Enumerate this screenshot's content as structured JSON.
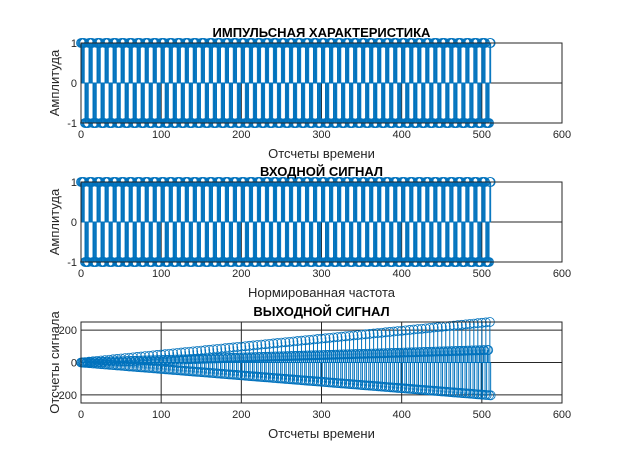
{
  "chart_data": [
    {
      "type": "stem",
      "title": "ИМПУЛЬСНАЯ ХАРАКТЕРИСТИКА",
      "xlabel": "Отсчеты времени",
      "ylabel": "Амплитуда",
      "xlim": [
        0,
        600
      ],
      "ylim": [
        -1,
        1
      ],
      "xticks": [
        0,
        100,
        200,
        300,
        400,
        500,
        600
      ],
      "yticks": [
        -1,
        0,
        1
      ],
      "grid": true,
      "marker": "circle",
      "color": "#0072BD",
      "n_samples": 512,
      "pattern": "±1 square wave, period 10 samples; amplitude 1"
    },
    {
      "type": "stem",
      "title": "ВХОДНОЙ СИГНАЛ",
      "xlabel": "Нормированная частота",
      "ylabel": "Амплитуда",
      "xlim": [
        0,
        600
      ],
      "ylim": [
        -1,
        1
      ],
      "xticks": [
        0,
        100,
        200,
        300,
        400,
        500,
        600
      ],
      "yticks": [
        -1,
        0,
        1
      ],
      "grid": true,
      "marker": "circle",
      "color": "#0072BD",
      "n_samples": 512,
      "pattern": "±1 square wave, period 10 samples; amplitude 1"
    },
    {
      "type": "stem",
      "title": "ВЫХОДНОЙ СИГНАЛ",
      "xlabel": "Отсчеты времени",
      "ylabel": "Отсчеты сигнала",
      "xlim": [
        0,
        600
      ],
      "ylim": [
        -250,
        250
      ],
      "xticks": [
        0,
        100,
        200,
        300,
        400,
        500,
        600
      ],
      "yticks": [
        -200,
        0,
        200
      ],
      "grid": true,
      "marker": "circle",
      "color": "#0072BD",
      "n_samples": 512,
      "pattern": "oscillation with linearly growing envelope from 0 to about 250 at sample 512"
    }
  ]
}
